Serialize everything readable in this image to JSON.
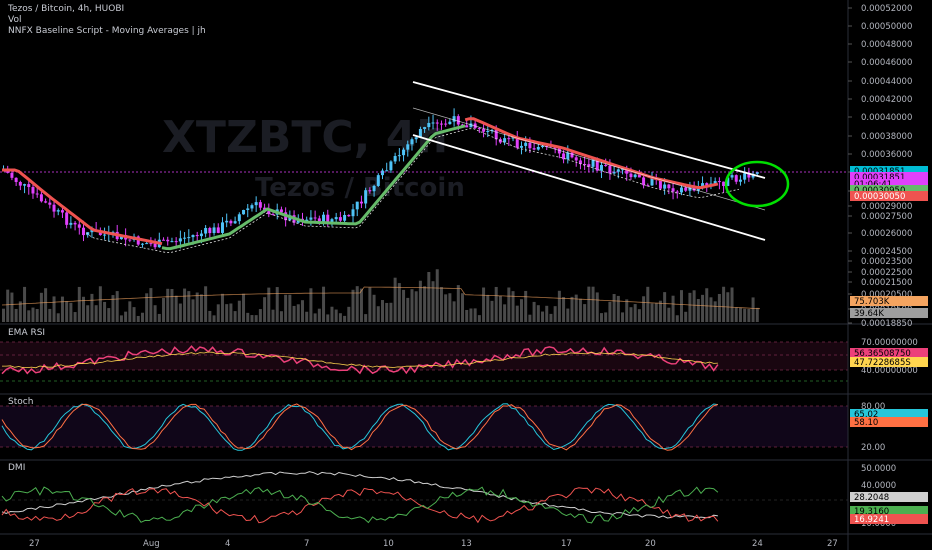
{
  "legend": {
    "title": "Tezos / Bitcoin, 4h, HUOBI",
    "volume": "Vol",
    "indicator": "NNFX Baseline Script - Moving Averages | jh"
  },
  "watermark": {
    "symbol": "XTZBTC, 4h",
    "name": "Tezos / Bitcoin"
  },
  "panes": {
    "rsi": "EMA RSI",
    "stoch": "Stoch",
    "dmi": "DMI"
  },
  "colors": {
    "bull": "#4fc3f7",
    "bear": "#e040fb",
    "baseline_up": "#66bb6a",
    "baseline_down": "#ef5350",
    "channel": "#ffffff",
    "rsi": "#ec407a",
    "rsi_ma": "#ffd54f",
    "stoch_k": "#26c6da",
    "stoch_d": "#ff7043",
    "circle": "#00e000"
  },
  "price_axis": [
    "0.00052000",
    "0.00050000",
    "0.00048000",
    "0.00046000",
    "0.00044000",
    "0.00042000",
    "0.00040000",
    "0.00038000",
    "0.00036000",
    "0.00034000",
    "0.00032000",
    "0.00029000",
    "0.00027500",
    "0.00026000",
    "0.00024500",
    "0.00023500",
    "0.00022500",
    "0.00021500",
    "0.00020500",
    "0.00019500",
    "0.00018850"
  ],
  "price_badges": [
    {
      "text": "0.00031851",
      "color": "#00bcd4",
      "text_color": "#000000"
    },
    {
      "text": "0.00031851",
      "color": "#e040fb",
      "text_color": "#000000"
    },
    {
      "text": "01:06:41",
      "color": "#e040fb",
      "text_color": "#000000"
    },
    {
      "text": "0.00030950",
      "color": "#66bb6a",
      "text_color": "#000000"
    },
    {
      "text": "0.00030050",
      "color": "#ef5350",
      "text_color": "#ffffff"
    }
  ],
  "volume_badges": [
    {
      "text": "75.703K",
      "color": "#f4a460",
      "text_color": "#000000"
    },
    {
      "text": "39.64K",
      "color": "#9e9e9e",
      "text_color": "#000000"
    }
  ],
  "rsi_axis": [
    "70.00000000",
    "40.00000000"
  ],
  "rsi_badges": [
    {
      "text": "56.36508750",
      "color": "#ec407a",
      "text_color": "#000000"
    },
    {
      "text": "47.7228685S",
      "color": "#ffd54f",
      "text_color": "#000000"
    }
  ],
  "stoch_axis": [
    "80.00",
    "20.00"
  ],
  "stoch_badges": [
    {
      "text": "65.02",
      "color": "#26c6da",
      "text_color": "#000000"
    },
    {
      "text": "58.10",
      "color": "#ff7043",
      "text_color": "#000000"
    }
  ],
  "dmi_axis": [
    "50.0000",
    "40.0000",
    "10.0000"
  ],
  "dmi_badges": [
    {
      "text": "28.2048",
      "color": "#d0d0d0",
      "text_color": "#000000"
    },
    {
      "text": "19.3160",
      "color": "#4caf50",
      "text_color": "#000000"
    },
    {
      "text": "16.9241",
      "color": "#ef5350",
      "text_color": "#ffffff"
    }
  ],
  "time_axis": [
    "27",
    "Aug",
    "4",
    "7",
    "10",
    "13",
    "17",
    "20",
    "24",
    "27"
  ]
}
